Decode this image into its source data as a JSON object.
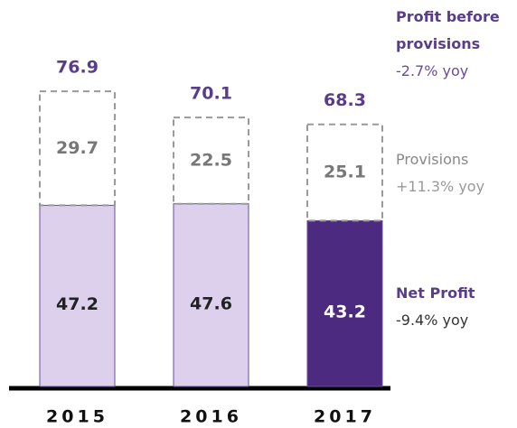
{
  "chart_data": {
    "type": "stacked_bar",
    "categories": [
      "2015",
      "2016",
      "2017"
    ],
    "series": [
      {
        "name": "Net Profit",
        "yoy": "-9.4% yoy",
        "values": [
          47.2,
          47.6,
          43.2
        ],
        "colors": [
          "#dcd0ec",
          "#dcd0ec",
          "#4b2a80"
        ],
        "label_colors": [
          "#222222",
          "#222222",
          "#ffffff"
        ]
      },
      {
        "name": "Provisions",
        "yoy": "+11.3% yoy",
        "values": [
          29.7,
          22.5,
          25.1
        ],
        "color": "#999999",
        "dashed": true
      }
    ],
    "total_name": "Profit before provisions",
    "total_yoy": "-2.7% yoy",
    "totals": [
      76.9,
      70.1,
      68.3
    ],
    "ylim": [
      0,
      80
    ]
  }
}
